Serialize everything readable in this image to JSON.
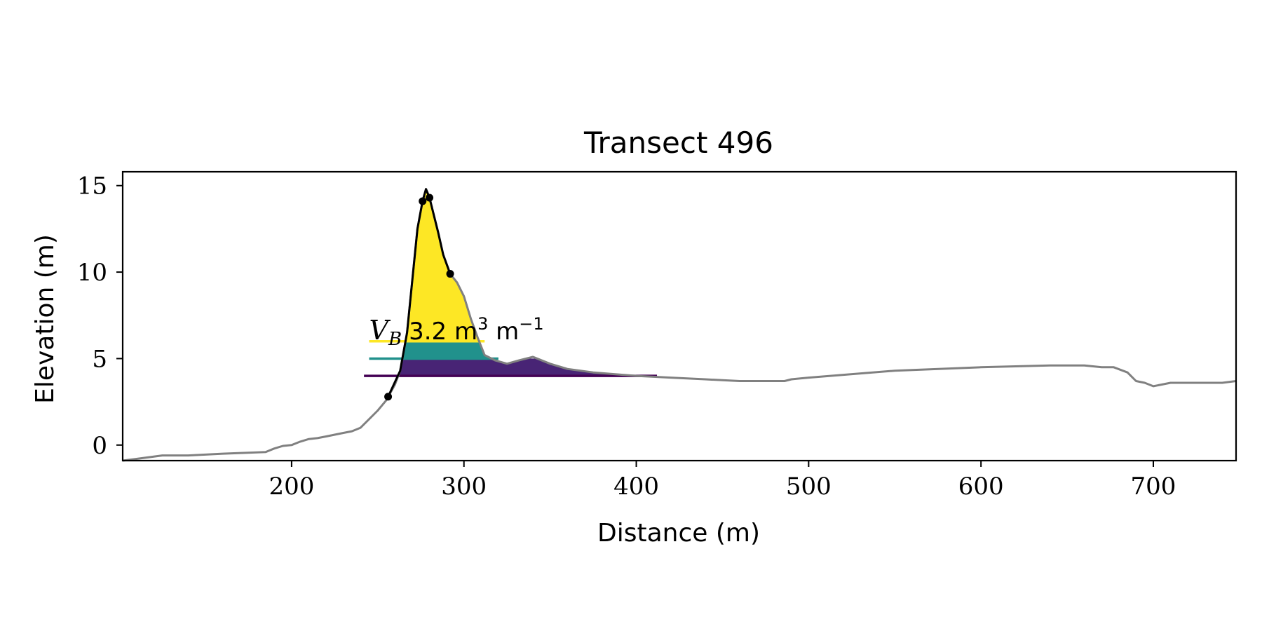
{
  "chart_data": {
    "type": "line",
    "title": "Transect 496",
    "xlabel": "Distance (m)",
    "ylabel": "Elevation (m)",
    "xlim": [
      102,
      748
    ],
    "ylim": [
      -0.9,
      15.8
    ],
    "xticks": [
      200,
      300,
      400,
      500,
      600,
      700
    ],
    "yticks": [
      0,
      5,
      10,
      15
    ],
    "grid": false,
    "annotation": {
      "symbol": "V",
      "subscript": "B",
      "value_text": "3.2 m",
      "unit_exp1": "3",
      "unit_rest": " m",
      "unit_exp2": "−1",
      "x": 245,
      "y": 6.6
    },
    "profile": {
      "x": [
        102,
        110,
        125,
        140,
        160,
        185,
        190,
        195,
        200,
        205,
        210,
        215,
        220,
        225,
        230,
        235,
        240,
        245,
        250,
        255,
        260,
        263,
        267,
        270,
        273,
        276,
        278,
        280,
        282,
        285,
        288,
        292,
        296,
        300,
        304,
        308,
        312,
        318,
        325,
        332,
        340,
        350,
        360,
        375,
        400,
        420,
        440,
        460,
        470,
        486,
        490,
        500,
        550,
        600,
        640,
        660,
        670,
        677,
        685,
        690,
        695,
        700,
        710,
        720,
        730,
        740,
        748
      ],
      "y": [
        -0.9,
        -0.8,
        -0.6,
        -0.6,
        -0.5,
        -0.4,
        -0.2,
        -0.05,
        0.0,
        0.2,
        0.35,
        0.4,
        0.5,
        0.6,
        0.7,
        0.8,
        1.0,
        1.5,
        2.0,
        2.6,
        3.5,
        4.3,
        6.5,
        9.5,
        12.5,
        14.1,
        14.8,
        14.3,
        13.5,
        12.3,
        11.0,
        9.9,
        9.4,
        8.6,
        7.3,
        6.2,
        5.2,
        4.9,
        4.7,
        4.9,
        5.1,
        4.7,
        4.4,
        4.2,
        4.0,
        3.9,
        3.8,
        3.7,
        3.7,
        3.7,
        3.8,
        3.9,
        4.3,
        4.5,
        4.6,
        4.6,
        4.5,
        4.5,
        4.2,
        3.7,
        3.6,
        3.4,
        3.6,
        3.6,
        3.6,
        3.6,
        3.7
      ]
    },
    "dune_line": {
      "x": [
        256,
        263,
        267,
        270,
        273,
        276,
        278,
        280,
        282,
        285,
        288,
        292
      ],
      "y": [
        2.8,
        4.3,
        6.5,
        9.5,
        12.5,
        14.1,
        14.8,
        14.3,
        13.5,
        12.3,
        11.0,
        9.9
      ]
    },
    "markers": {
      "x": [
        256,
        276,
        280,
        292
      ],
      "y": [
        2.8,
        14.1,
        14.3,
        9.9
      ]
    },
    "fill_bands": [
      {
        "level": 6.0,
        "color": "#fde725",
        "x_left": 245,
        "x_right": 312
      },
      {
        "level": 5.0,
        "color": "#21918c",
        "x_left": 245,
        "x_right": 320
      },
      {
        "level": 4.0,
        "color": "#440154",
        "x_left": 242,
        "x_right": 412
      }
    ],
    "colors": {
      "profile": "#808080",
      "dune": "#000000",
      "band_top": "#fde725",
      "band_mid": "#21918c",
      "band_low": "#482475",
      "band_base": "#440154"
    }
  }
}
